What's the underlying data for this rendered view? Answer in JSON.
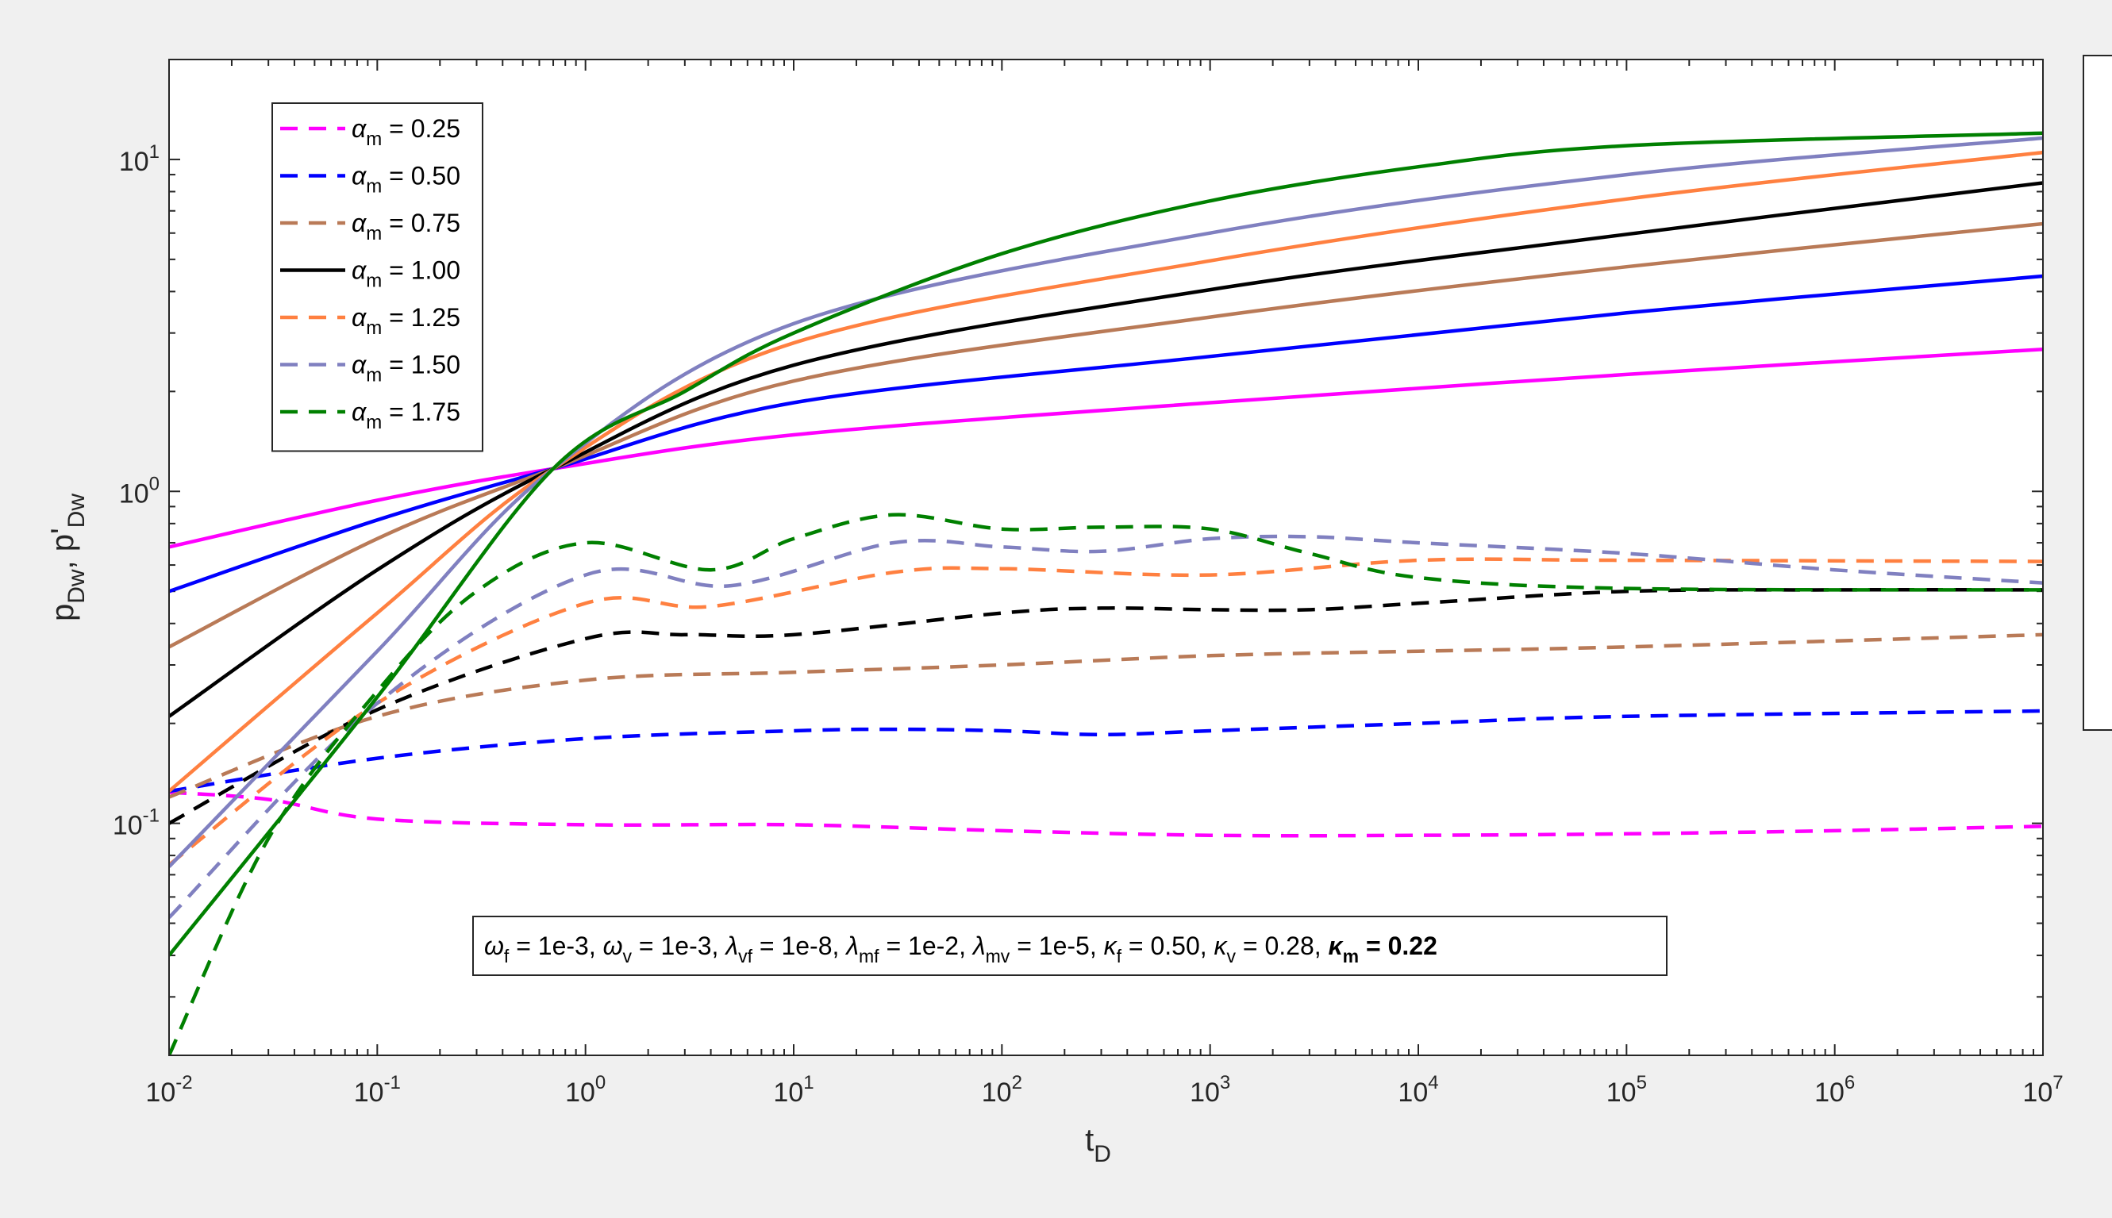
{
  "chart_data": {
    "type": "line",
    "xscale": "log",
    "yscale": "log",
    "xlim": [
      0.01,
      10000000
    ],
    "ylim": [
      0.02,
      20
    ],
    "xlabel": {
      "main": "t",
      "sub": "D"
    },
    "ylabel": {
      "p1": "p",
      "sub1": "Dw",
      "sep": ", ",
      "p2": "p'",
      "sub2": "Dw"
    },
    "x_ticks": [
      {
        "value": 0.01,
        "base": "10",
        "exp": "-2"
      },
      {
        "value": 0.1,
        "base": "10",
        "exp": "-1"
      },
      {
        "value": 1,
        "base": "10",
        "exp": "0"
      },
      {
        "value": 10,
        "base": "10",
        "exp": "1"
      },
      {
        "value": 100,
        "base": "10",
        "exp": "2"
      },
      {
        "value": 1000,
        "base": "10",
        "exp": "3"
      },
      {
        "value": 10000,
        "base": "10",
        "exp": "4"
      },
      {
        "value": 100000,
        "base": "10",
        "exp": "5"
      },
      {
        "value": 1000000,
        "base": "10",
        "exp": "6"
      },
      {
        "value": 10000000,
        "base": "10",
        "exp": "7"
      }
    ],
    "y_ticks": [
      {
        "value": 0.1,
        "base": "10",
        "exp": "-1"
      },
      {
        "value": 1,
        "base": "10",
        "exp": "0"
      },
      {
        "value": 10,
        "base": "10",
        "exp": "1"
      }
    ],
    "legend": {
      "placement": "top-left",
      "symbol": "α",
      "sub": "m",
      "entries": [
        {
          "value": "= 0.25",
          "color": "#ff00ff",
          "dash": true
        },
        {
          "value": "= 0.50",
          "color": "#0000ff",
          "dash": true
        },
        {
          "value": "= 0.75",
          "color": "#b97a57",
          "dash": true
        },
        {
          "value": "= 1.00",
          "color": "#000000",
          "dash": false
        },
        {
          "value": "= 1.25",
          "color": "#ff8040",
          "dash": true
        },
        {
          "value": "= 1.50",
          "color": "#8080c0",
          "dash": true
        },
        {
          "value": "= 1.75",
          "color": "#008000",
          "dash": true
        }
      ]
    },
    "annotation": [
      {
        "sym": "ω",
        "sub": "f",
        "val": " = 1e-3, "
      },
      {
        "sym": "ω",
        "sub": "v",
        "val": " = 1e-3, "
      },
      {
        "sym": "λ",
        "sub": "vf",
        "val": " = 1e-8, "
      },
      {
        "sym": "λ",
        "sub": "mf",
        "val": " = 1e-2, "
      },
      {
        "sym": "λ",
        "sub": "mv",
        "val": " = 1e-5, "
      },
      {
        "sym": "κ",
        "sub": "f",
        "val": " = 0.50, "
      },
      {
        "sym": "κ",
        "sub": "v",
        "val": " = 0.28, "
      },
      {
        "sym": "κ",
        "sub": "m",
        "val": " = 0.22",
        "bold": true
      }
    ],
    "series": [
      {
        "alpha": 0.25,
        "kind": "pressure",
        "color": "#ff00ff",
        "x": [
          0.01,
          0.1,
          0.7,
          10,
          1000,
          100000,
          10000000
        ],
        "y": [
          0.68,
          0.94,
          1.17,
          1.48,
          1.85,
          2.25,
          2.68
        ]
      },
      {
        "alpha": 0.25,
        "kind": "derivative",
        "color": "#ff00ff",
        "x": [
          0.01,
          0.03,
          0.1,
          1,
          10,
          100,
          1000,
          10000,
          100000,
          1000000,
          10000000
        ],
        "y": [
          0.124,
          0.118,
          0.103,
          0.099,
          0.099,
          0.095,
          0.092,
          0.092,
          0.093,
          0.095,
          0.098
        ]
      },
      {
        "alpha": 0.5,
        "kind": "pressure",
        "color": "#0000ff",
        "x": [
          0.01,
          0.1,
          0.7,
          10,
          1000,
          100000,
          10000000
        ],
        "y": [
          0.5,
          0.82,
          1.17,
          1.85,
          2.55,
          3.45,
          4.45
        ]
      },
      {
        "alpha": 0.5,
        "kind": "derivative",
        "color": "#0000ff",
        "x": [
          0.01,
          0.1,
          1,
          10,
          30,
          100,
          300,
          1000,
          10000,
          100000,
          10000000
        ],
        "y": [
          0.125,
          0.157,
          0.18,
          0.19,
          0.192,
          0.19,
          0.185,
          0.19,
          0.2,
          0.21,
          0.218
        ]
      },
      {
        "alpha": 0.75,
        "kind": "pressure",
        "color": "#b97a57",
        "x": [
          0.01,
          0.1,
          0.7,
          10,
          1000,
          100000,
          10000000
        ],
        "y": [
          0.34,
          0.72,
          1.17,
          2.15,
          3.35,
          4.75,
          6.4
        ]
      },
      {
        "alpha": 0.75,
        "kind": "derivative",
        "color": "#b97a57",
        "x": [
          0.01,
          0.1,
          1,
          10,
          100,
          1000,
          10000,
          100000,
          10000000
        ],
        "y": [
          0.12,
          0.21,
          0.27,
          0.285,
          0.3,
          0.32,
          0.33,
          0.34,
          0.37
        ]
      },
      {
        "alpha": 1.0,
        "kind": "pressure",
        "color": "#000000",
        "x": [
          0.01,
          0.1,
          0.7,
          10,
          1000,
          100000,
          10000000
        ],
        "y": [
          0.21,
          0.58,
          1.17,
          2.4,
          4.05,
          5.95,
          8.5
        ]
      },
      {
        "alpha": 1.0,
        "kind": "derivative",
        "color": "#000000",
        "x": [
          0.01,
          0.1,
          1,
          3,
          10,
          100,
          300,
          1000,
          3000,
          10000,
          100000,
          1000000,
          10000000
        ],
        "y": [
          0.1,
          0.22,
          0.36,
          0.37,
          0.37,
          0.43,
          0.445,
          0.44,
          0.44,
          0.46,
          0.5,
          0.505,
          0.505
        ]
      },
      {
        "alpha": 1.25,
        "kind": "pressure",
        "color": "#ff8040",
        "x": [
          0.01,
          0.1,
          0.7,
          10,
          1000,
          100000,
          10000000
        ],
        "y": [
          0.125,
          0.43,
          1.17,
          2.8,
          4.95,
          7.6,
          10.5
        ]
      },
      {
        "alpha": 1.25,
        "kind": "derivative",
        "color": "#ff8040",
        "x": [
          0.01,
          0.1,
          1,
          4,
          30,
          100,
          1000,
          10000,
          100000,
          10000000
        ],
        "y": [
          0.075,
          0.23,
          0.46,
          0.45,
          0.57,
          0.585,
          0.56,
          0.62,
          0.62,
          0.615
        ]
      },
      {
        "alpha": 1.5,
        "kind": "pressure",
        "color": "#8080c0",
        "x": [
          0.01,
          0.1,
          0.7,
          10,
          1000,
          100000,
          10000000
        ],
        "y": [
          0.074,
          0.33,
          1.17,
          3.2,
          6.0,
          9.0,
          11.6
        ]
      },
      {
        "alpha": 1.5,
        "kind": "derivative",
        "color": "#8080c0",
        "x": [
          0.01,
          0.1,
          1,
          5,
          30,
          100,
          300,
          1000,
          3000,
          10000,
          100000,
          1000000,
          10000000
        ],
        "y": [
          0.052,
          0.23,
          0.56,
          0.52,
          0.7,
          0.68,
          0.66,
          0.72,
          0.73,
          0.7,
          0.65,
          0.58,
          0.53
        ]
      },
      {
        "alpha": 1.75,
        "kind": "pressure",
        "color": "#008000",
        "x": [
          0.01,
          0.1,
          0.7,
          3,
          10,
          100,
          1000,
          10000,
          100000,
          10000000
        ],
        "y": [
          0.04,
          0.24,
          1.17,
          2.0,
          3.0,
          5.2,
          7.5,
          9.5,
          11.0,
          12.0
        ]
      },
      {
        "alpha": 1.75,
        "kind": "derivative",
        "color": "#008000",
        "x": [
          0.01,
          0.03,
          0.1,
          0.3,
          1,
          4,
          10,
          30,
          100,
          300,
          1000,
          3000,
          10000,
          100000,
          10000000
        ],
        "y": [
          0.02,
          0.09,
          0.25,
          0.5,
          0.7,
          0.58,
          0.72,
          0.85,
          0.77,
          0.78,
          0.77,
          0.65,
          0.55,
          0.51,
          0.505
        ]
      }
    ]
  }
}
